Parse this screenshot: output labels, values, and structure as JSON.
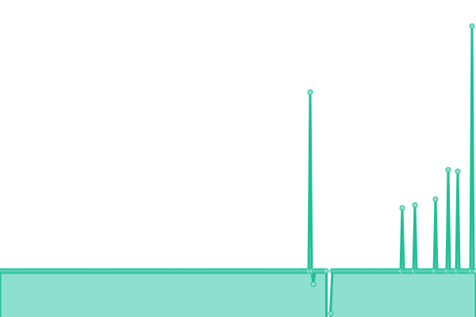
{
  "chart_data": {
    "type": "area",
    "title": "",
    "xlabel": "",
    "ylabel": "",
    "xlim": [
      0,
      300
    ],
    "ylim": [
      -30,
      185
    ],
    "grid": false,
    "legend": "none",
    "baseline": 0,
    "n_points": 300,
    "default_value": 0,
    "gap_indices": [
      206,
      207
    ],
    "spikes": [
      {
        "x": 195,
        "y": 122
      },
      {
        "x": 197,
        "y": -9
      },
      {
        "x": 205,
        "y": 0
      },
      {
        "x": 208,
        "y": -29
      },
      {
        "x": 253,
        "y": 43
      },
      {
        "x": 261,
        "y": 45
      },
      {
        "x": 274,
        "y": 49
      },
      {
        "x": 282,
        "y": 69
      },
      {
        "x": 288,
        "y": 68
      },
      {
        "x": 297,
        "y": 167
      }
    ],
    "colors": {
      "line": "#21bf98",
      "fill": "#8de0cd",
      "marker_fill": "#8de0cd",
      "marker_stroke": "#21bf98"
    }
  }
}
